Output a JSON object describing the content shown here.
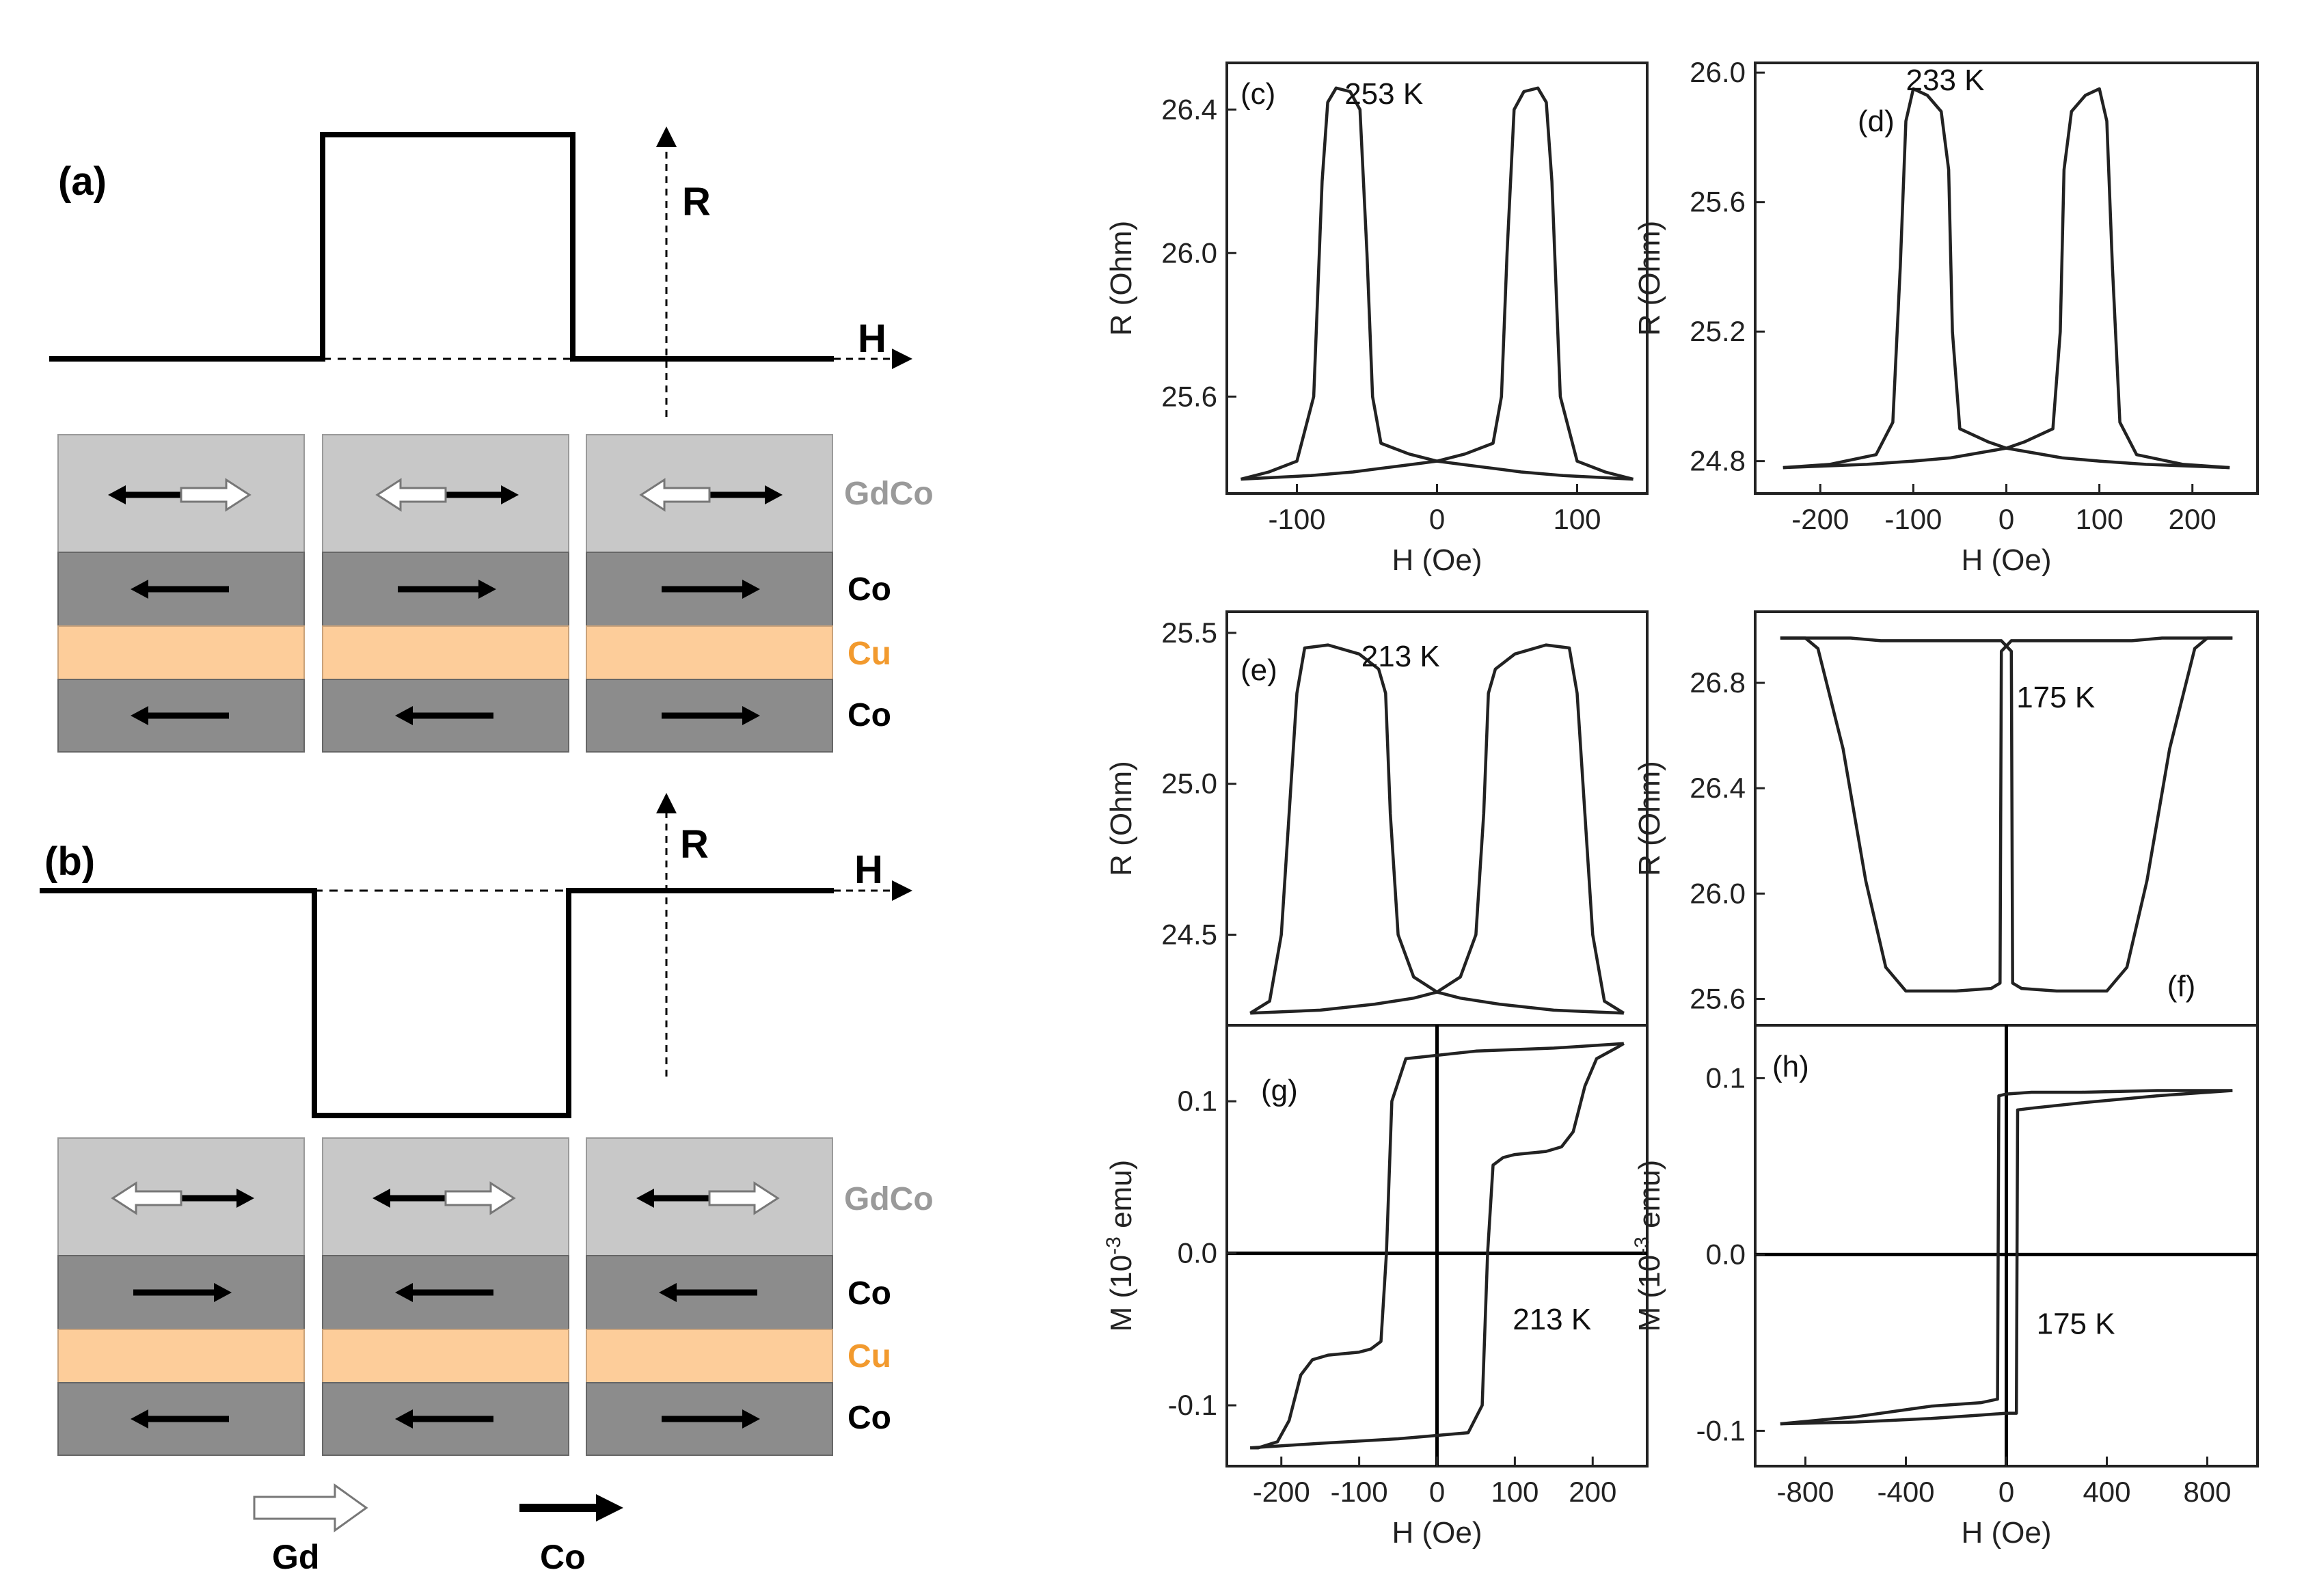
{
  "schematic": {
    "a": {
      "label": "(a)",
      "axis_r": "R",
      "axis_h": "H",
      "shape": "high-in-middle",
      "layer_labels": [
        "GdCo",
        "Co",
        "Cu",
        "Co"
      ],
      "columns": [
        {
          "gdco_black": "left",
          "gdco_open": "right",
          "co_top": "left",
          "co_bottom": "left"
        },
        {
          "gdco_black": "right",
          "gdco_open": "left",
          "co_top": "right",
          "co_bottom": "left"
        },
        {
          "gdco_black": "right",
          "gdco_open": "left",
          "co_top": "right",
          "co_bottom": "right"
        }
      ]
    },
    "b": {
      "label": "(b)",
      "axis_r": "R",
      "axis_h": "H",
      "shape": "low-in-middle",
      "layer_labels": [
        "GdCo",
        "Co",
        "Cu",
        "Co"
      ],
      "columns": [
        {
          "gdco_black": "right",
          "gdco_open": "left",
          "co_top": "right",
          "co_bottom": "left"
        },
        {
          "gdco_black": "left",
          "gdco_open": "right",
          "co_top": "left",
          "co_bottom": "left"
        },
        {
          "gdco_black": "left",
          "gdco_open": "right",
          "co_top": "left",
          "co_bottom": "right"
        }
      ]
    },
    "legend": {
      "gd": "Gd",
      "co": "Co"
    },
    "colors": {
      "gdco": "#c8c8c8",
      "co": "#8c8c8c",
      "cu": "#fdcd9a",
      "gdco_text": "#9a9a9a",
      "cu_text": "#f29a2e"
    }
  },
  "chart_data": [
    {
      "id": "c",
      "type": "line",
      "panel_label": "(c)",
      "annotation": "253 K",
      "xlabel": "H (Oe)",
      "ylabel": "R (Ohm)",
      "xlim": [
        -150,
        150
      ],
      "ylim": [
        25.33,
        26.53
      ],
      "xticks": [
        -100,
        0,
        100
      ],
      "xtick_labels": [
        "-100",
        "0",
        "100"
      ],
      "yticks": [
        25.6,
        26.0,
        26.4
      ],
      "ytick_labels": [
        "25.6",
        "26.0",
        "26.4"
      ],
      "series": [
        {
          "name": "sweep-up",
          "x": [
            -140,
            -90,
            -60,
            -40,
            -20,
            0,
            20,
            40,
            46,
            50,
            55,
            62,
            72,
            78,
            82,
            88,
            100,
            120,
            140
          ],
          "y": [
            25.37,
            25.38,
            25.39,
            25.4,
            25.41,
            25.42,
            25.44,
            25.47,
            25.6,
            26.0,
            26.4,
            26.45,
            26.46,
            26.42,
            26.2,
            25.6,
            25.42,
            25.39,
            25.37
          ]
        },
        {
          "name": "sweep-down",
          "x": [
            140,
            90,
            60,
            40,
            20,
            0,
            -20,
            -40,
            -46,
            -50,
            -55,
            -62,
            -72,
            -78,
            -82,
            -88,
            -100,
            -120,
            -140
          ],
          "y": [
            25.37,
            25.38,
            25.39,
            25.4,
            25.41,
            25.42,
            25.44,
            25.47,
            25.6,
            26.0,
            26.4,
            26.45,
            26.46,
            26.42,
            26.2,
            25.6,
            25.42,
            25.39,
            25.37
          ]
        }
      ]
    },
    {
      "id": "d",
      "type": "line",
      "panel_label": "(d)",
      "annotation": "233 K",
      "xlabel": "H (Oe)",
      "ylabel": "R (Ohm)",
      "xlim": [
        -270,
        270
      ],
      "ylim": [
        24.7,
        26.03
      ],
      "xticks": [
        -200,
        -100,
        0,
        100,
        200
      ],
      "xtick_labels": [
        "-200",
        "-100",
        "0",
        "100",
        "200"
      ],
      "yticks": [
        24.8,
        25.2,
        25.6,
        26.0
      ],
      "ytick_labels": [
        "24.8",
        "25.2",
        "25.6",
        "26.0"
      ],
      "series": [
        {
          "name": "sweep-up",
          "x": [
            -240,
            -150,
            -100,
            -60,
            -20,
            0,
            20,
            50,
            58,
            62,
            70,
            85,
            100,
            108,
            114,
            122,
            140,
            190,
            240
          ],
          "y": [
            24.78,
            24.79,
            24.8,
            24.81,
            24.83,
            24.84,
            24.86,
            24.9,
            25.2,
            25.7,
            25.88,
            25.93,
            25.95,
            25.85,
            25.4,
            24.92,
            24.82,
            24.79,
            24.78
          ]
        },
        {
          "name": "sweep-down",
          "x": [
            240,
            150,
            100,
            60,
            20,
            0,
            -20,
            -50,
            -58,
            -62,
            -70,
            -85,
            -100,
            -108,
            -114,
            -122,
            -140,
            -190,
            -240
          ],
          "y": [
            24.78,
            24.79,
            24.8,
            24.81,
            24.83,
            24.84,
            24.86,
            24.9,
            25.2,
            25.7,
            25.88,
            25.93,
            25.95,
            25.85,
            25.4,
            24.92,
            24.82,
            24.79,
            24.78
          ]
        }
      ]
    },
    {
      "id": "e",
      "type": "line",
      "panel_label": "(e)",
      "annotation": "213 K",
      "xlabel": "",
      "ylabel": "R (Ohm)",
      "xlim": [
        -270,
        270
      ],
      "ylim": [
        24.2,
        25.57
      ],
      "xticks": [],
      "xtick_labels": [],
      "yticks": [
        24.5,
        25.0,
        25.5
      ],
      "ytick_labels": [
        "24.5",
        "25.0",
        "25.5"
      ],
      "series": [
        {
          "name": "sweep-up",
          "x": [
            -240,
            -150,
            -80,
            -30,
            0,
            30,
            50,
            60,
            66,
            75,
            100,
            140,
            170,
            180,
            190,
            200,
            215,
            240
          ],
          "y": [
            24.24,
            24.25,
            24.27,
            24.29,
            24.31,
            24.36,
            24.5,
            24.9,
            25.3,
            25.38,
            25.43,
            25.46,
            25.45,
            25.3,
            24.9,
            24.5,
            24.28,
            24.24
          ]
        },
        {
          "name": "sweep-down",
          "x": [
            240,
            150,
            80,
            30,
            0,
            -30,
            -50,
            -60,
            -66,
            -75,
            -100,
            -140,
            -170,
            -180,
            -190,
            -200,
            -215,
            -240
          ],
          "y": [
            24.24,
            24.25,
            24.27,
            24.29,
            24.31,
            24.36,
            24.5,
            24.9,
            25.3,
            25.38,
            25.43,
            25.46,
            25.45,
            25.3,
            24.9,
            24.5,
            24.28,
            24.24
          ]
        }
      ]
    },
    {
      "id": "f",
      "type": "line",
      "panel_label": "(f)",
      "annotation": "175 K",
      "xlabel": "",
      "ylabel": "R (Ohm)",
      "xlim": [
        -1000,
        1000
      ],
      "ylim": [
        25.5,
        27.07
      ],
      "xticks": [],
      "xtick_labels": [],
      "yticks": [
        25.6,
        26.0,
        26.4,
        26.8
      ],
      "ytick_labels": [
        "25.6",
        "26.0",
        "26.4",
        "26.8"
      ],
      "series": [
        {
          "name": "sweep-up",
          "x": [
            -900,
            -800,
            -750,
            -650,
            -560,
            -480,
            -400,
            -200,
            -60,
            -25,
            -20,
            20,
            25,
            60,
            300,
            420,
            500,
            620,
            720,
            800,
            900
          ],
          "y": [
            26.97,
            26.97,
            26.93,
            26.55,
            26.05,
            25.72,
            25.63,
            25.63,
            25.64,
            25.66,
            26.92,
            26.96,
            26.96,
            26.96,
            26.96,
            26.96,
            26.96,
            26.97,
            26.97,
            26.97,
            26.97
          ]
        },
        {
          "name": "sweep-down",
          "x": [
            900,
            800,
            750,
            650,
            560,
            480,
            400,
            200,
            60,
            25,
            20,
            -20,
            -25,
            -60,
            -300,
            -420,
            -500,
            -620,
            -720,
            -800,
            -900
          ],
          "y": [
            26.97,
            26.97,
            26.93,
            26.55,
            26.05,
            25.72,
            25.63,
            25.63,
            25.64,
            25.66,
            26.92,
            26.96,
            26.96,
            26.96,
            26.96,
            26.96,
            26.96,
            26.97,
            26.97,
            26.97,
            26.97
          ]
        }
      ]
    },
    {
      "id": "g",
      "type": "line",
      "panel_label": "(g)",
      "annotation": "213 K",
      "xlabel": "H (Oe)",
      "ylabel": "M (10",
      "ylabel_sup": "-3",
      "ylabel_tail": " emu)",
      "xlim": [
        -270,
        270
      ],
      "ylim": [
        -0.14,
        0.15
      ],
      "xticks": [
        -200,
        -100,
        0,
        100,
        200
      ],
      "xtick_labels": [
        "-200",
        "-100",
        "0",
        "100",
        "200"
      ],
      "yticks": [
        -0.1,
        0.0,
        0.1
      ],
      "ytick_labels": [
        "-0.1",
        "0.0",
        "0.1"
      ],
      "series": [
        {
          "name": "sweep-up",
          "x": [
            -240,
            -150,
            -50,
            40,
            58,
            65,
            72,
            85,
            100,
            140,
            160,
            175,
            190,
            205,
            230,
            240
          ],
          "y": [
            -0.128,
            -0.125,
            -0.122,
            -0.118,
            -0.1,
            0.0,
            0.058,
            0.063,
            0.065,
            0.067,
            0.07,
            0.08,
            0.11,
            0.128,
            0.135,
            0.138
          ]
        },
        {
          "name": "sweep-down",
          "x": [
            240,
            150,
            50,
            -40,
            -58,
            -65,
            -72,
            -85,
            -100,
            -140,
            -160,
            -175,
            -190,
            -205,
            -230,
            -240
          ],
          "y": [
            0.138,
            0.135,
            0.133,
            0.128,
            0.1,
            0.0,
            -0.058,
            -0.063,
            -0.065,
            -0.067,
            -0.07,
            -0.08,
            -0.11,
            -0.124,
            -0.128,
            -0.128
          ]
        }
      ]
    },
    {
      "id": "h",
      "type": "line",
      "panel_label": "(h)",
      "annotation": "175 K",
      "xlabel": "H (Oe)",
      "ylabel": "M (10",
      "ylabel_sup": "-3",
      "ylabel_tail": " emu)",
      "xlim": [
        -1000,
        1000
      ],
      "ylim": [
        -0.12,
        0.13
      ],
      "xticks": [
        -800,
        -400,
        0,
        400,
        800
      ],
      "xtick_labels": [
        "-800",
        "-400",
        "0",
        "400",
        "800"
      ],
      "yticks": [
        -0.1,
        0.0,
        0.1
      ],
      "ytick_labels": [
        "-0.1",
        "0.0",
        "0.1"
      ],
      "series": [
        {
          "name": "sweep-up",
          "x": [
            -900,
            -600,
            -300,
            -100,
            0,
            40,
            45,
            100,
            300,
            600,
            900
          ],
          "y": [
            -0.096,
            -0.095,
            -0.093,
            -0.091,
            -0.09,
            -0.09,
            0.082,
            0.083,
            0.086,
            0.09,
            0.093
          ]
        },
        {
          "name": "sweep-down",
          "x": [
            900,
            600,
            300,
            100,
            0,
            -30,
            -35,
            -100,
            -300,
            -600,
            -900
          ],
          "y": [
            0.093,
            0.093,
            0.092,
            0.092,
            0.091,
            0.09,
            -0.082,
            -0.084,
            -0.086,
            -0.092,
            -0.096
          ]
        }
      ]
    }
  ]
}
